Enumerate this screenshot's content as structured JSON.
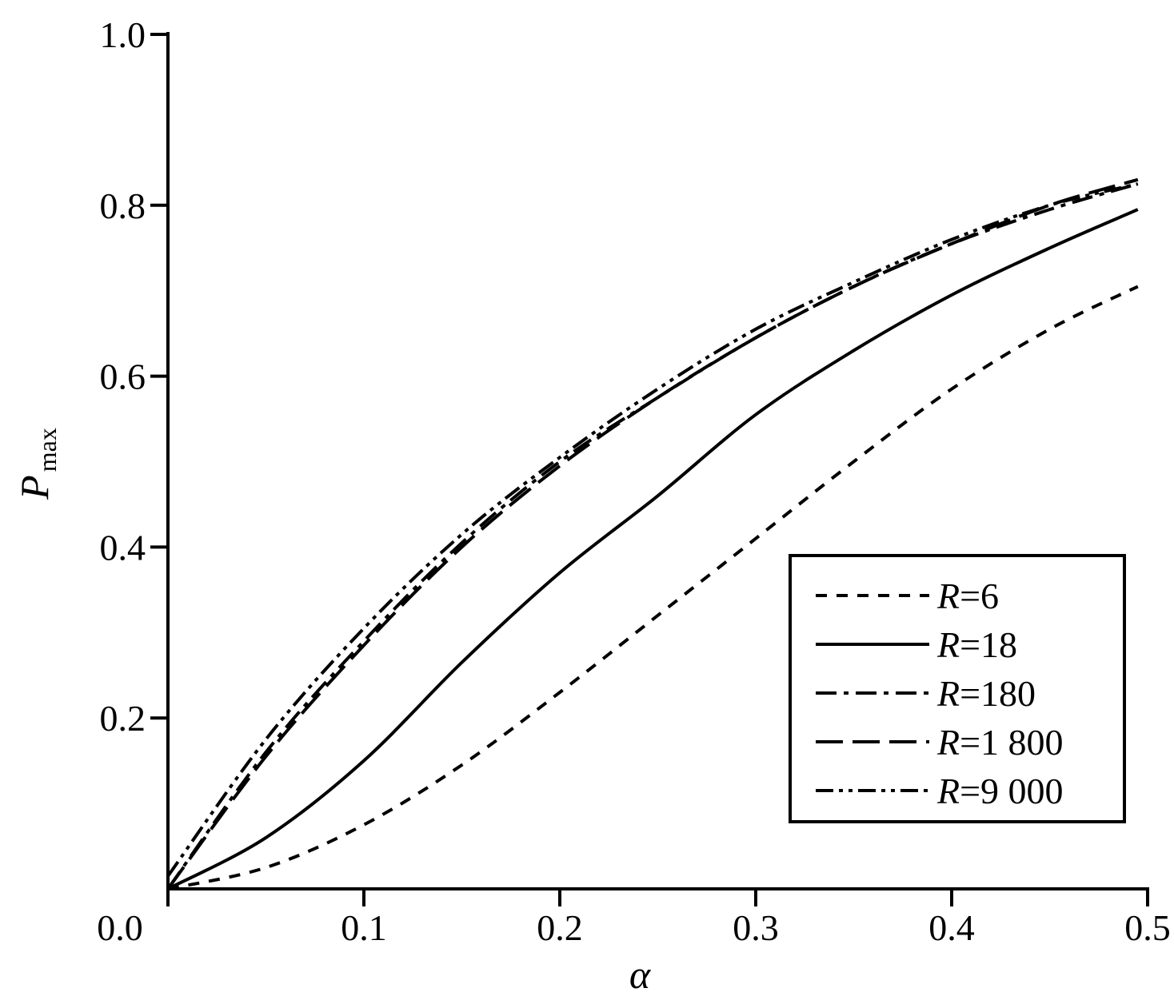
{
  "chart_data": {
    "type": "line",
    "xlabel": "α",
    "ylabel_main": "P",
    "ylabel_sub": "max",
    "xlim": [
      0,
      0.5
    ],
    "ylim": [
      0,
      1.0
    ],
    "x_ticks": [
      "0.0",
      "0.1",
      "0.2",
      "0.3",
      "0.4",
      "0.5"
    ],
    "y_ticks": [
      "0.2",
      "0.4",
      "0.6",
      "0.8",
      "1.0"
    ],
    "grid": false,
    "legend_position": "bottom-right",
    "series": [
      {
        "name": "R=6",
        "var": "R",
        "value": "6",
        "dash": "dashed",
        "x": [
          0,
          0.05,
          0.1,
          0.15,
          0.2,
          0.25,
          0.3,
          0.35,
          0.4,
          0.45,
          0.495
        ],
        "y": [
          0,
          0.025,
          0.075,
          0.145,
          0.23,
          0.32,
          0.41,
          0.5,
          0.585,
          0.655,
          0.705
        ]
      },
      {
        "name": "R=18",
        "var": "R",
        "value": "18",
        "dash": "solid",
        "x": [
          0,
          0.05,
          0.1,
          0.15,
          0.2,
          0.25,
          0.3,
          0.35,
          0.4,
          0.45,
          0.495
        ],
        "y": [
          0,
          0.06,
          0.15,
          0.265,
          0.37,
          0.46,
          0.555,
          0.63,
          0.695,
          0.75,
          0.795
        ]
      },
      {
        "name": "R=180",
        "var": "R",
        "value": "180",
        "dash": "dash-dot",
        "x": [
          0,
          0.05,
          0.1,
          0.15,
          0.2,
          0.25,
          0.3,
          0.35,
          0.4,
          0.45,
          0.495
        ],
        "y": [
          0,
          0.16,
          0.29,
          0.405,
          0.5,
          0.575,
          0.645,
          0.705,
          0.755,
          0.795,
          0.825
        ]
      },
      {
        "name": "R=1 800",
        "var": "R",
        "value": "1 800",
        "dash": "long-dash",
        "x": [
          0,
          0.05,
          0.1,
          0.15,
          0.2,
          0.25,
          0.3,
          0.35,
          0.4,
          0.45,
          0.495
        ],
        "y": [
          0,
          0.155,
          0.285,
          0.4,
          0.495,
          0.575,
          0.645,
          0.705,
          0.755,
          0.8,
          0.83
        ]
      },
      {
        "name": "R=9 000",
        "var": "R",
        "value": "9 000",
        "dash": "dash-dot-dot",
        "x": [
          0,
          0.05,
          0.1,
          0.15,
          0.2,
          0.25,
          0.3,
          0.35,
          0.4,
          0.45,
          0.495
        ],
        "y": [
          0.015,
          0.175,
          0.305,
          0.415,
          0.505,
          0.585,
          0.655,
          0.71,
          0.76,
          0.8,
          0.825
        ]
      }
    ]
  }
}
